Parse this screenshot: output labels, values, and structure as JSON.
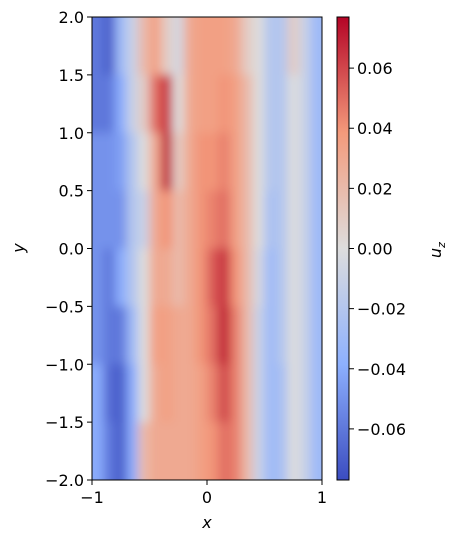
{
  "chart_data": {
    "type": "heatmap",
    "x": [
      -0.95,
      -0.85,
      -0.75,
      -0.65,
      -0.55,
      -0.45,
      -0.35,
      -0.25,
      -0.15,
      -0.05,
      0.05,
      0.15,
      0.25,
      0.35,
      0.45,
      0.55,
      0.65,
      0.75,
      0.85,
      0.95
    ],
    "y": [
      1.75,
      1.25,
      0.75,
      0.25,
      -0.25,
      -0.75,
      -1.25,
      -1.75
    ],
    "z": [
      [
        -0.06,
        -0.07,
        -0.03,
        -0.01,
        0.02,
        0.035,
        0.01,
        -0.005,
        0.03,
        0.035,
        0.035,
        0.035,
        0.03,
        0.01,
        0.0,
        -0.02,
        -0.02,
        0.01,
        -0.01,
        -0.03
      ],
      [
        -0.06,
        -0.06,
        -0.04,
        -0.01,
        0.01,
        0.05,
        0.065,
        0.0,
        0.03,
        0.035,
        0.035,
        0.04,
        0.035,
        0.02,
        0.0,
        -0.02,
        -0.02,
        0.0,
        -0.01,
        -0.03
      ],
      [
        -0.05,
        -0.05,
        -0.045,
        -0.02,
        0.0,
        0.03,
        0.07,
        0.01,
        0.03,
        0.04,
        0.04,
        0.045,
        0.035,
        0.02,
        0.0,
        -0.02,
        -0.02,
        0.0,
        -0.01,
        -0.03
      ],
      [
        -0.05,
        -0.05,
        -0.05,
        -0.02,
        -0.01,
        0.03,
        0.04,
        0.02,
        0.03,
        0.04,
        0.045,
        0.05,
        0.035,
        0.02,
        0.0,
        -0.025,
        -0.02,
        0.0,
        -0.01,
        -0.03
      ],
      [
        -0.05,
        -0.06,
        -0.04,
        -0.02,
        0.0,
        0.03,
        0.03,
        0.02,
        0.03,
        0.04,
        0.055,
        0.065,
        0.04,
        0.02,
        -0.005,
        -0.03,
        -0.02,
        0.0,
        -0.01,
        -0.03
      ],
      [
        -0.05,
        -0.06,
        -0.06,
        -0.03,
        0.0,
        0.035,
        0.035,
        0.03,
        0.03,
        0.04,
        0.05,
        0.07,
        0.045,
        0.02,
        -0.01,
        -0.03,
        -0.02,
        0.0,
        -0.01,
        -0.03
      ],
      [
        -0.04,
        -0.065,
        -0.07,
        -0.04,
        0.0,
        0.03,
        0.035,
        0.03,
        0.03,
        0.035,
        0.045,
        0.06,
        0.045,
        0.02,
        -0.01,
        -0.03,
        -0.025,
        0.0,
        -0.01,
        -0.03
      ],
      [
        -0.04,
        -0.06,
        -0.07,
        -0.04,
        0.02,
        0.03,
        0.03,
        0.03,
        0.03,
        0.035,
        0.04,
        0.05,
        0.045,
        0.02,
        -0.01,
        -0.03,
        -0.025,
        0.0,
        -0.01,
        -0.03
      ]
    ],
    "colormap": "coolwarm",
    "xlim": [
      -1,
      1
    ],
    "xticks": [
      {
        "value": -1,
        "label": "−1"
      },
      0,
      1
    ],
    "ylim": [
      -2,
      2
    ],
    "yticks": [
      {
        "value": -2,
        "label": "−2.0"
      },
      {
        "value": -1.5,
        "label": "−1.5"
      },
      {
        "value": -1,
        "label": "−1.0"
      },
      {
        "value": -0.5,
        "label": "−0.5"
      },
      {
        "value": 0,
        "label": "0.0"
      },
      0.5,
      {
        "value": 1,
        "label": "1.0"
      },
      1.5,
      {
        "value": 2,
        "label": "2.0"
      }
    ],
    "clim": [
      -0.077,
      0.077
    ],
    "cticks": [
      {
        "value": -0.06,
        "label": "−0.06"
      },
      {
        "value": -0.04,
        "label": "−0.04"
      },
      {
        "value": -0.02,
        "label": "−0.02"
      },
      {
        "value": 0,
        "label": "0.00"
      },
      0.02,
      0.04,
      0.06
    ],
    "xlabel": "x",
    "ylabel": "y",
    "colorbar_label": {
      "base": "u",
      "sub": "z"
    }
  }
}
